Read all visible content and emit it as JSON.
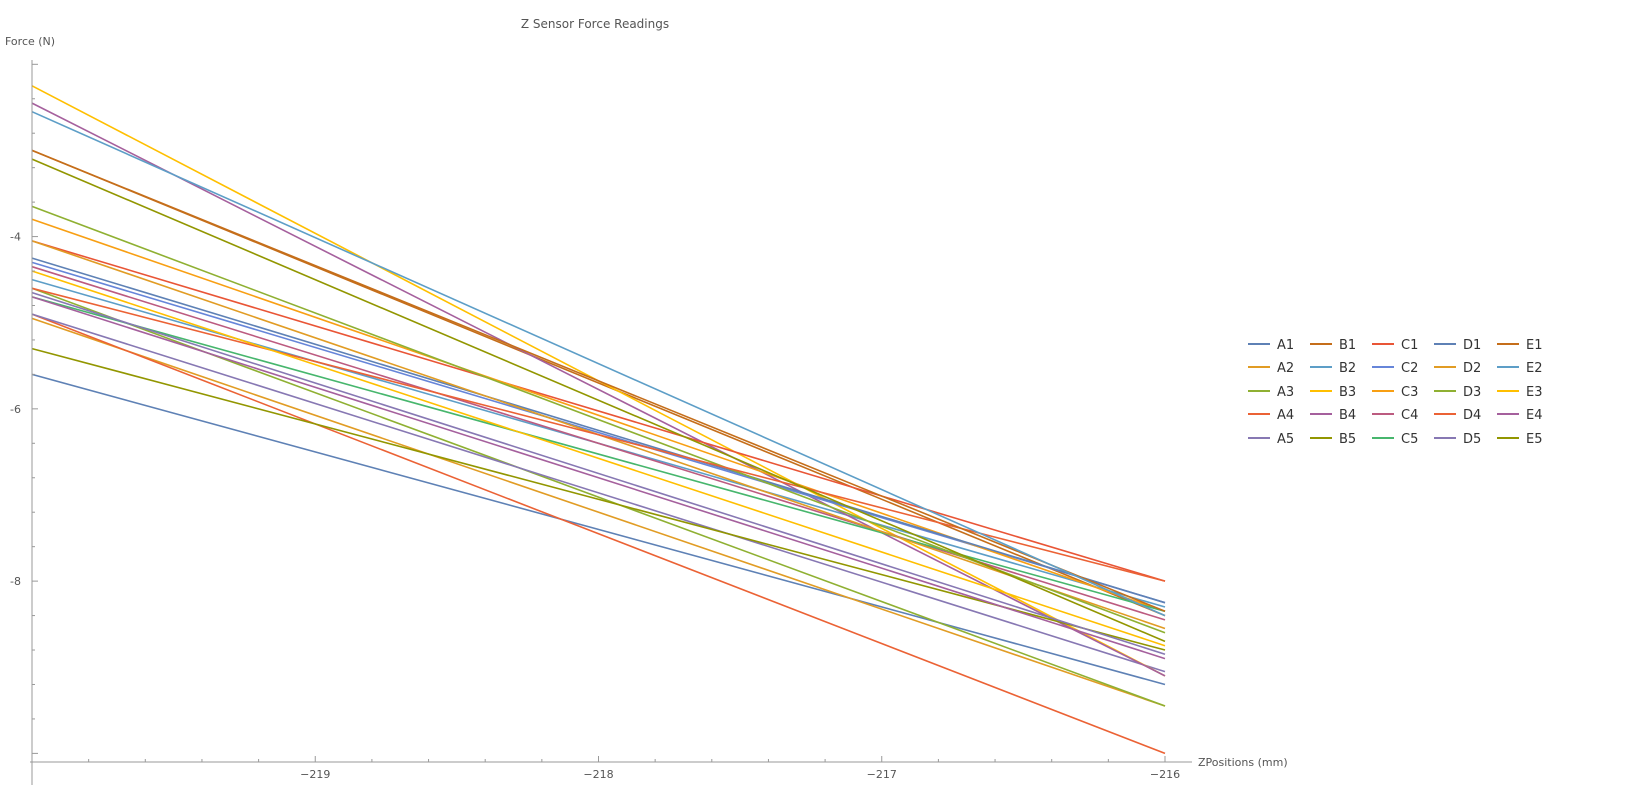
{
  "chart_data": {
    "type": "line",
    "title": "Z Sensor Force Readings",
    "xlabel": "ZPositions (mm)",
    "ylabel": "Force (N)",
    "xlim": [
      -220,
      -216
    ],
    "ylim": [
      -10.1,
      -1.95
    ],
    "x": [
      -220,
      -216
    ],
    "xticks": [
      -219,
      -218,
      -217,
      -216
    ],
    "xtick_labels": [
      "−219",
      "−218",
      "−217",
      "−216"
    ],
    "yticks": [
      -4,
      -6,
      -8
    ],
    "ytick_labels": [
      "-4",
      "-6",
      "-8"
    ],
    "grid": false,
    "legend_position": "right",
    "series": [
      {
        "name": "A1",
        "color": "#5E81B5",
        "values": [
          -5.6,
          -9.2
        ]
      },
      {
        "name": "A2",
        "color": "#E19C24",
        "values": [
          -4.95,
          -9.45
        ]
      },
      {
        "name": "A3",
        "color": "#8FB032",
        "values": [
          -4.6,
          -9.45
        ]
      },
      {
        "name": "A4",
        "color": "#EB6235",
        "values": [
          -4.9,
          -10.0
        ]
      },
      {
        "name": "A5",
        "color": "#8778B3",
        "values": [
          -4.9,
          -9.05
        ]
      },
      {
        "name": "B1",
        "color": "#C56E1A",
        "values": [
          -3.0,
          -8.4
        ]
      },
      {
        "name": "B2",
        "color": "#5D9EC7",
        "values": [
          -4.5,
          -8.3
        ]
      },
      {
        "name": "B3",
        "color": "#FFBF00",
        "values": [
          -2.25,
          -9.1
        ]
      },
      {
        "name": "B4",
        "color": "#A5609D",
        "values": [
          -2.45,
          -9.1
        ]
      },
      {
        "name": "B5",
        "color": "#929600",
        "values": [
          -5.3,
          -8.8
        ]
      },
      {
        "name": "C1",
        "color": "#E95536",
        "values": [
          -4.05,
          -8.0
        ]
      },
      {
        "name": "C2",
        "color": "#6685D9",
        "values": [
          -4.3,
          -8.25
        ]
      },
      {
        "name": "C3",
        "color": "#F89F13",
        "values": [
          -3.8,
          -8.35
        ]
      },
      {
        "name": "C4",
        "color": "#BC5B80",
        "values": [
          -4.35,
          -8.45
        ]
      },
      {
        "name": "C5",
        "color": "#47B66D",
        "values": [
          -4.7,
          -8.35
        ]
      },
      {
        "name": "D1",
        "color": "#5E81B5",
        "values": [
          -4.25,
          -8.25
        ]
      },
      {
        "name": "D2",
        "color": "#E19C24",
        "values": [
          -4.05,
          -8.55
        ]
      },
      {
        "name": "D3",
        "color": "#8FB032",
        "values": [
          -3.65,
          -8.6
        ]
      },
      {
        "name": "D4",
        "color": "#EB6235",
        "values": [
          -4.6,
          -8.0
        ]
      },
      {
        "name": "D5",
        "color": "#8778B3",
        "values": [
          -4.65,
          -8.85
        ]
      },
      {
        "name": "E1",
        "color": "#C56E1A",
        "values": [
          -3.0,
          -8.35
        ]
      },
      {
        "name": "E2",
        "color": "#5D9EC7",
        "values": [
          -2.55,
          -8.4
        ]
      },
      {
        "name": "E3",
        "color": "#FFBF00",
        "values": [
          -4.4,
          -8.75
        ]
      },
      {
        "name": "E4",
        "color": "#A5609D",
        "values": [
          -4.7,
          -8.9
        ]
      },
      {
        "name": "E5",
        "color": "#929600",
        "values": [
          -3.1,
          -8.7
        ]
      }
    ]
  }
}
